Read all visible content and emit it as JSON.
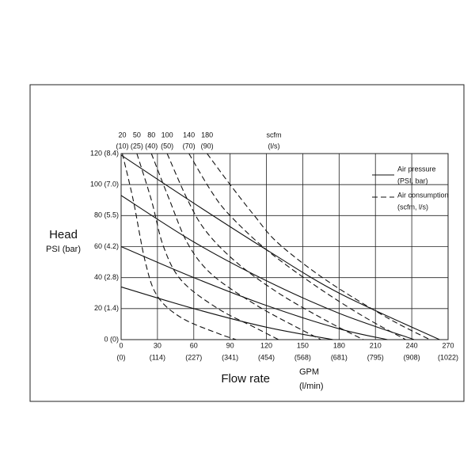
{
  "chart_data": {
    "type": "line",
    "y_title": "Head",
    "y_unit": "PSI (bar)",
    "x_title": "Flow rate",
    "x_unit": "GPM",
    "x_unit_2": "(l/min)",
    "top_unit": "scfm",
    "top_unit_2": "(l/s)",
    "xlim": [
      0,
      270
    ],
    "ylim": [
      0,
      120
    ],
    "xticks": [
      0,
      30,
      60,
      90,
      120,
      150,
      180,
      210,
      240,
      270
    ],
    "xtick_labels_2": [
      "(0)",
      "(114)",
      "(227)",
      "(341)",
      "(454)",
      "(568)",
      "(681)",
      "(795)",
      "(908)",
      "(1022)"
    ],
    "yticks": [
      {
        "value": 0,
        "label": "0 (0)"
      },
      {
        "value": 20,
        "label": "20 (1.4)"
      },
      {
        "value": 40,
        "label": "40 (2.8)"
      },
      {
        "value": 60,
        "label": "60 (4.2)"
      },
      {
        "value": 80,
        "label": "80 (5.5)"
      },
      {
        "value": 100,
        "label": "100 (7.0)"
      },
      {
        "value": 120,
        "label": "120 (8.4)"
      }
    ],
    "grid": true,
    "legend": "upper right",
    "legend_entries": [
      {
        "style": "solid",
        "label": [
          "Air pressure",
          "(PSI, bar)"
        ]
      },
      {
        "style": "dashed",
        "label": [
          "Air consumption",
          "(scfm, l/s)"
        ]
      }
    ],
    "color": "#111111",
    "series": [
      {
        "style": "solid",
        "x": [
          0,
          60,
          120,
          180,
          263
        ],
        "values": [
          119,
          88,
          58,
          30,
          0
        ]
      },
      {
        "style": "solid",
        "x": [
          0,
          60,
          120,
          180,
          242
        ],
        "values": [
          93,
          63,
          38,
          17,
          0
        ]
      },
      {
        "style": "solid",
        "x": [
          0,
          60,
          120,
          180,
          220
        ],
        "values": [
          60,
          40,
          22,
          7,
          0
        ]
      },
      {
        "style": "solid",
        "x": [
          0,
          60,
          120,
          175
        ],
        "values": [
          34,
          20,
          8,
          0
        ]
      },
      {
        "style": "dashed",
        "label": [
          "20",
          "(10)"
        ],
        "x": [
          1,
          10,
          20,
          30,
          50,
          80,
          95
        ],
        "values": [
          120,
          90,
          50,
          28,
          14,
          4,
          0
        ]
      },
      {
        "style": "dashed",
        "label": [
          "50",
          "(25)"
        ],
        "x": [
          13,
          25,
          35,
          50,
          80,
          110,
          130
        ],
        "values": [
          120,
          90,
          60,
          38,
          20,
          8,
          0
        ]
      },
      {
        "style": "dashed",
        "label": [
          "80",
          "(40)"
        ],
        "x": [
          25,
          40,
          55,
          75,
          110,
          140,
          165
        ],
        "values": [
          120,
          90,
          62,
          42,
          23,
          10,
          0
        ]
      },
      {
        "style": "dashed",
        "label": [
          "100",
          "(50)"
        ],
        "x": [
          38,
          55,
          70,
          95,
          130,
          170,
          200
        ],
        "values": [
          120,
          90,
          70,
          50,
          30,
          12,
          0
        ]
      },
      {
        "style": "dashed",
        "label": [
          "140",
          "(70)"
        ],
        "x": [
          56,
          75,
          90,
          120,
          160,
          200,
          235
        ],
        "values": [
          120,
          95,
          80,
          58,
          35,
          15,
          0
        ]
      },
      {
        "style": "dashed",
        "label": [
          "180",
          "(90)"
        ],
        "x": [
          71,
          90,
          110,
          130,
          170,
          220,
          255
        ],
        "values": [
          120,
          100,
          80,
          62,
          38,
          14,
          0
        ]
      }
    ]
  }
}
